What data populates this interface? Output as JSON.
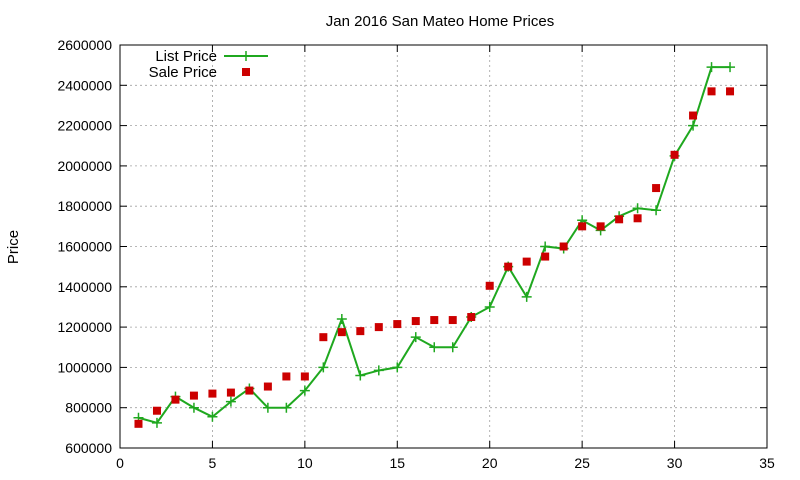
{
  "chart_data": {
    "type": "line",
    "title": "Jan 2016 San Mateo Home Prices",
    "xlabel": "",
    "ylabel": "Price",
    "xlim": [
      0,
      35
    ],
    "ylim": [
      600000,
      2600000
    ],
    "xticks": [
      0,
      5,
      10,
      15,
      20,
      25,
      30,
      35
    ],
    "yticks": [
      600000,
      800000,
      1000000,
      1200000,
      1400000,
      1600000,
      1800000,
      2000000,
      2200000,
      2400000,
      2600000
    ],
    "grid": true,
    "legend_position": "top-left",
    "series": [
      {
        "name": "List Price",
        "style": "line-plus",
        "color": "#1fa81f",
        "x": [
          1,
          2,
          3,
          4,
          5,
          6,
          7,
          8,
          9,
          10,
          11,
          12,
          13,
          14,
          15,
          16,
          17,
          18,
          19,
          20,
          21,
          22,
          23,
          24,
          25,
          26,
          27,
          28,
          29,
          30,
          31,
          32,
          33
        ],
        "values": [
          750000,
          725000,
          855000,
          800000,
          755000,
          830000,
          895000,
          800000,
          800000,
          885000,
          1000000,
          1240000,
          960000,
          985000,
          1000000,
          1150000,
          1100000,
          1100000,
          1250000,
          1300000,
          1500000,
          1350000,
          1600000,
          1590000,
          1730000,
          1680000,
          1750000,
          1790000,
          1780000,
          2050000,
          2200000,
          2490000,
          2490000
        ]
      },
      {
        "name": "Sale Price",
        "style": "square-marker",
        "color": "#cc0000",
        "x": [
          1,
          2,
          3,
          4,
          5,
          6,
          7,
          8,
          9,
          10,
          11,
          12,
          13,
          14,
          15,
          16,
          17,
          18,
          19,
          20,
          21,
          22,
          23,
          24,
          25,
          26,
          27,
          28,
          29,
          30,
          31,
          32,
          33
        ],
        "values": [
          720000,
          785000,
          840000,
          860000,
          870000,
          875000,
          885000,
          905000,
          955000,
          955000,
          1150000,
          1175000,
          1180000,
          1200000,
          1215000,
          1230000,
          1235000,
          1235000,
          1250000,
          1405000,
          1500000,
          1525000,
          1550000,
          1600000,
          1700000,
          1700000,
          1735000,
          1740000,
          1890000,
          2055000,
          2250000,
          2370000,
          2370000
        ]
      }
    ]
  }
}
